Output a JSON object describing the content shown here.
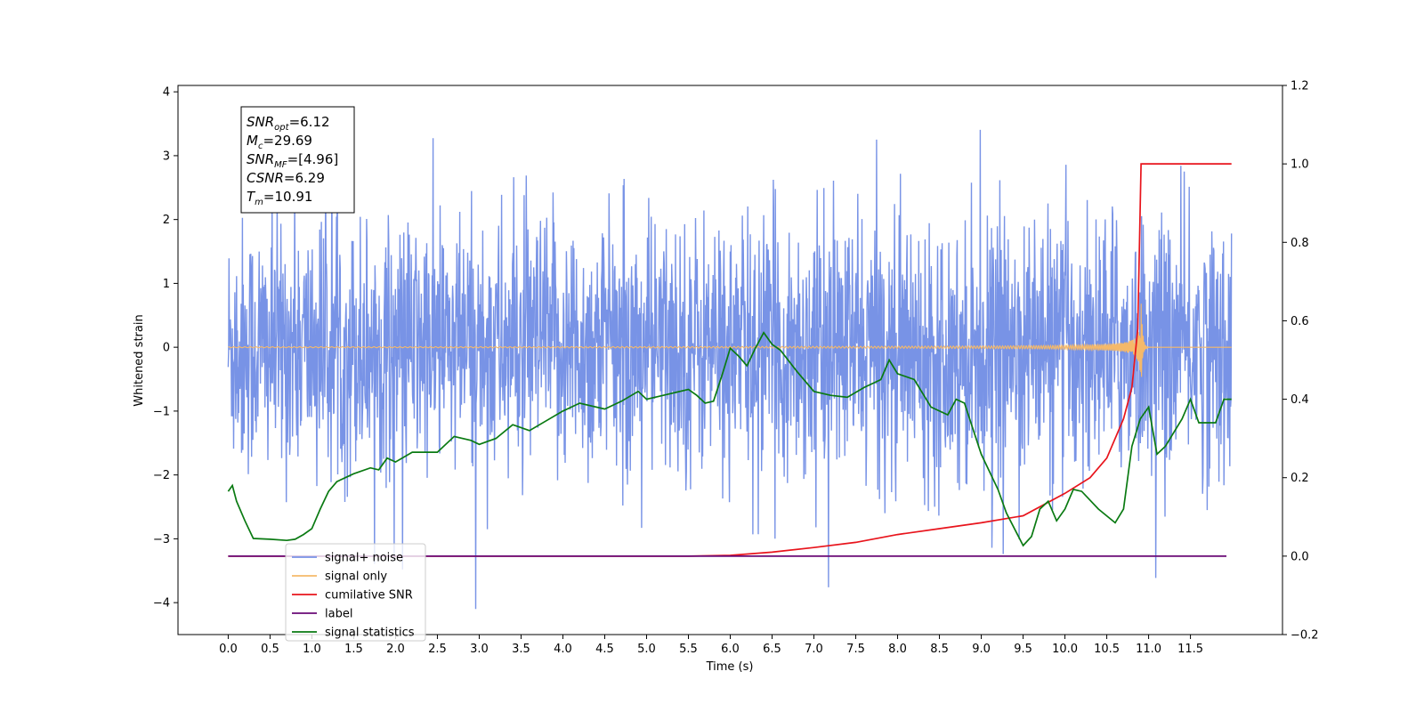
{
  "chart_data": {
    "type": "line",
    "xlabel": "Time (s)",
    "ylabel_left": "Whitened strain",
    "ylabel_right": "",
    "xlim": [
      -0.6,
      12.6
    ],
    "ylim_left": [
      -4.5,
      4.1
    ],
    "ylim_right": [
      -0.2,
      1.2
    ],
    "x_ticks": [
      0.0,
      0.5,
      1.0,
      1.5,
      2.0,
      2.5,
      3.0,
      3.5,
      4.0,
      4.5,
      5.0,
      5.5,
      6.0,
      6.5,
      7.0,
      7.5,
      8.0,
      8.5,
      9.0,
      9.5,
      10.0,
      10.5,
      11.0,
      11.5
    ],
    "x_tick_labels": [
      "0.0",
      "0.5",
      "1.0",
      "1.5",
      "2.0",
      "2.5",
      "3.0",
      "3.5",
      "4.0",
      "4.5",
      "5.0",
      "5.5",
      "6.0",
      "6.5",
      "7.0",
      "7.5",
      "8.0",
      "8.5",
      "9.0",
      "9.5",
      "10.0",
      "10.5",
      "11.0",
      "11.5"
    ],
    "y_ticks_left": [
      -4,
      -3,
      -2,
      -1,
      0,
      1,
      2,
      3,
      4
    ],
    "y_tick_labels_left": [
      "−4",
      "−3",
      "−2",
      "−1",
      "0",
      "1",
      "2",
      "3",
      "4"
    ],
    "y_ticks_right": [
      -0.2,
      0.0,
      0.2,
      0.4,
      0.6,
      0.8,
      1.0,
      1.2
    ],
    "y_tick_labels_right": [
      "−0.2",
      "0.0",
      "0.2",
      "0.4",
      "0.6",
      "0.8",
      "1.0",
      "1.2"
    ],
    "legend_position": "lower-left",
    "grid": false,
    "info_box": {
      "lines": [
        {
          "var": "SNR",
          "sub": "opt",
          "value": "=6.12"
        },
        {
          "var": "M",
          "sub": "c",
          "value": "=29.69"
        },
        {
          "var": "SNR",
          "sub": "MF",
          "value": "=[4.96]"
        },
        {
          "var": "CSNR",
          "sub": "",
          "value": "=6.29"
        },
        {
          "var": "T",
          "sub": "m",
          "value": "=10.91"
        }
      ]
    },
    "series": [
      {
        "name": "signal+ noise",
        "axis": "left",
        "color": "#7893e6",
        "kind": "noise",
        "x_range": [
          0.0,
          11.99
        ],
        "envelope": [
          -2.6,
          2.5
        ],
        "note_spikes": "peaks up to ~3.7 and down to ~-4.1"
      },
      {
        "name": "signal only",
        "axis": "left",
        "color": "#f5b96a",
        "kind": "chirp",
        "x_range": [
          0.0,
          11.99
        ],
        "merger_time": 10.91,
        "peak_amplitude": 0.8
      },
      {
        "name": "cumilative SNR",
        "axis": "right",
        "color": "#e8141c",
        "kind": "curve",
        "points": [
          [
            0.0,
            0.0
          ],
          [
            5.5,
            0.0
          ],
          [
            6.0,
            0.002
          ],
          [
            6.5,
            0.01
          ],
          [
            7.0,
            0.022
          ],
          [
            7.5,
            0.035
          ],
          [
            8.0,
            0.055
          ],
          [
            8.5,
            0.07
          ],
          [
            9.0,
            0.085
          ],
          [
            9.5,
            0.103
          ],
          [
            10.0,
            0.16
          ],
          [
            10.3,
            0.2
          ],
          [
            10.5,
            0.25
          ],
          [
            10.7,
            0.35
          ],
          [
            10.8,
            0.43
          ],
          [
            10.87,
            0.58
          ],
          [
            10.91,
            1.0
          ],
          [
            11.99,
            1.0
          ]
        ]
      },
      {
        "name": "label",
        "axis": "right",
        "color": "#6a0a76",
        "kind": "curve",
        "points": [
          [
            0.0,
            0.0
          ],
          [
            11.93,
            0.0
          ]
        ]
      },
      {
        "name": "signal statistics",
        "axis": "right",
        "color": "#0a7a12",
        "kind": "curve",
        "points": [
          [
            0.0,
            0.165
          ],
          [
            0.05,
            0.18
          ],
          [
            0.1,
            0.14
          ],
          [
            0.2,
            0.09
          ],
          [
            0.3,
            0.045
          ],
          [
            0.5,
            0.043
          ],
          [
            0.7,
            0.04
          ],
          [
            0.8,
            0.043
          ],
          [
            0.9,
            0.055
          ],
          [
            1.0,
            0.07
          ],
          [
            1.1,
            0.12
          ],
          [
            1.2,
            0.165
          ],
          [
            1.3,
            0.19
          ],
          [
            1.5,
            0.21
          ],
          [
            1.7,
            0.225
          ],
          [
            1.8,
            0.22
          ],
          [
            1.9,
            0.25
          ],
          [
            2.0,
            0.24
          ],
          [
            2.2,
            0.265
          ],
          [
            2.5,
            0.265
          ],
          [
            2.7,
            0.305
          ],
          [
            2.9,
            0.295
          ],
          [
            3.0,
            0.285
          ],
          [
            3.2,
            0.3
          ],
          [
            3.4,
            0.335
          ],
          [
            3.6,
            0.32
          ],
          [
            3.8,
            0.345
          ],
          [
            4.0,
            0.37
          ],
          [
            4.2,
            0.39
          ],
          [
            4.5,
            0.375
          ],
          [
            4.7,
            0.395
          ],
          [
            4.9,
            0.42
          ],
          [
            5.0,
            0.4
          ],
          [
            5.2,
            0.41
          ],
          [
            5.5,
            0.425
          ],
          [
            5.6,
            0.41
          ],
          [
            5.7,
            0.39
          ],
          [
            5.8,
            0.395
          ],
          [
            5.9,
            0.46
          ],
          [
            6.0,
            0.53
          ],
          [
            6.1,
            0.51
          ],
          [
            6.2,
            0.485
          ],
          [
            6.3,
            0.53
          ],
          [
            6.4,
            0.57
          ],
          [
            6.5,
            0.54
          ],
          [
            6.6,
            0.525
          ],
          [
            6.8,
            0.47
          ],
          [
            7.0,
            0.42
          ],
          [
            7.2,
            0.41
          ],
          [
            7.4,
            0.405
          ],
          [
            7.6,
            0.43
          ],
          [
            7.8,
            0.45
          ],
          [
            7.9,
            0.5
          ],
          [
            8.0,
            0.465
          ],
          [
            8.2,
            0.45
          ],
          [
            8.4,
            0.38
          ],
          [
            8.6,
            0.36
          ],
          [
            8.7,
            0.4
          ],
          [
            8.8,
            0.39
          ],
          [
            9.0,
            0.26
          ],
          [
            9.2,
            0.17
          ],
          [
            9.3,
            0.11
          ],
          [
            9.5,
            0.027
          ],
          [
            9.6,
            0.05
          ],
          [
            9.7,
            0.12
          ],
          [
            9.8,
            0.14
          ],
          [
            9.9,
            0.09
          ],
          [
            10.0,
            0.12
          ],
          [
            10.1,
            0.17
          ],
          [
            10.2,
            0.165
          ],
          [
            10.4,
            0.12
          ],
          [
            10.6,
            0.085
          ],
          [
            10.7,
            0.12
          ],
          [
            10.8,
            0.28
          ],
          [
            10.9,
            0.35
          ],
          [
            11.0,
            0.38
          ],
          [
            11.1,
            0.26
          ],
          [
            11.2,
            0.28
          ],
          [
            11.4,
            0.35
          ],
          [
            11.5,
            0.4
          ],
          [
            11.6,
            0.34
          ],
          [
            11.8,
            0.34
          ],
          [
            11.9,
            0.4
          ],
          [
            11.99,
            0.4
          ]
        ]
      },
      {
        "name": "signal only",
        "axis": "right",
        "color": "#aaaaaa",
        "kind": "hidden",
        "points": []
      }
    ]
  }
}
